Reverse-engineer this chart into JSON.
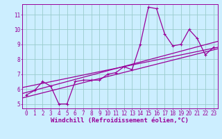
{
  "title": "",
  "xlabel": "Windchill (Refroidissement éolien,°C)",
  "ylabel": "",
  "xlim": [
    -0.5,
    23.5
  ],
  "ylim": [
    4.7,
    11.7
  ],
  "xticks": [
    0,
    1,
    2,
    3,
    4,
    5,
    6,
    7,
    8,
    9,
    10,
    11,
    12,
    13,
    14,
    15,
    16,
    17,
    18,
    19,
    20,
    21,
    22,
    23
  ],
  "yticks": [
    5,
    6,
    7,
    8,
    9,
    10,
    11
  ],
  "background_color": "#cceeff",
  "grid_color": "#99cccc",
  "line_color": "#990099",
  "series1_x": [
    0,
    1,
    2,
    3,
    4,
    5,
    6,
    7,
    8,
    9,
    10,
    11,
    12,
    13,
    14,
    15,
    16,
    17,
    18,
    19,
    20,
    21,
    22,
    23
  ],
  "series1_y": [
    5.6,
    5.9,
    6.5,
    6.2,
    5.0,
    5.0,
    6.5,
    6.6,
    6.6,
    6.6,
    7.0,
    7.1,
    7.5,
    7.3,
    9.0,
    11.5,
    11.4,
    9.7,
    8.9,
    9.0,
    10.0,
    9.4,
    8.3,
    8.8
  ],
  "series2_x": [
    -0.5,
    23.5
  ],
  "series2_y": [
    5.4,
    8.7
  ],
  "series3_x": [
    -0.5,
    23.5
  ],
  "series3_y": [
    6.1,
    8.8
  ],
  "series4_x": [
    -0.5,
    23.5
  ],
  "series4_y": [
    5.7,
    9.2
  ],
  "font_size_label": 6.5,
  "font_size_tick": 5.5,
  "line_width": 0.9,
  "marker": "+"
}
